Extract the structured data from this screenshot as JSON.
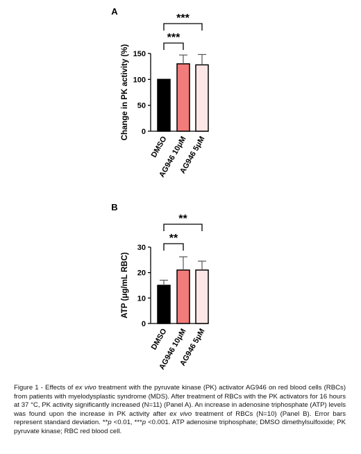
{
  "chart_data": [
    {
      "type": "bar",
      "panel_label": "A",
      "ylabel": "Change in PK activity  (%)",
      "categories": [
        "DMSO",
        "AG946 10μM",
        "AG946 5μM"
      ],
      "values": [
        100,
        130,
        128
      ],
      "error_bars": [
        0,
        17,
        20
      ],
      "ylim": [
        0,
        150
      ],
      "yticks": [
        "0",
        "50",
        "100",
        "150"
      ],
      "bar_colors": [
        "#000000",
        "#f27b7b",
        "#fde6e6"
      ],
      "significance": [
        {
          "from": 0,
          "to": 1,
          "label": "***"
        },
        {
          "from": 0,
          "to": 2,
          "label": "***"
        }
      ]
    },
    {
      "type": "bar",
      "panel_label": "B",
      "ylabel": "ATP (μg/mL RBC)",
      "categories": [
        "DMSO",
        "AG946 10μM",
        "AG946 5μM"
      ],
      "values": [
        15,
        21,
        21
      ],
      "error_bars": [
        2,
        5.2,
        3.5
      ],
      "ylim": [
        0,
        30
      ],
      "yticks": [
        "0",
        "10",
        "20",
        "30"
      ],
      "bar_colors": [
        "#000000",
        "#f27b7b",
        "#fde6e6"
      ],
      "significance": [
        {
          "from": 0,
          "to": 1,
          "label": "**"
        },
        {
          "from": 0,
          "to": 2,
          "label": "**"
        }
      ]
    }
  ],
  "caption": {
    "p1": "Figure 1 - Effects of ",
    "p2": "ex vivo",
    "p3": " treatment with the pyruvate kinase (PK) activator AG946 on red blood cells (RBCs) from patients with myelodysplastic syndrome (MDS). After treatment of RBCs with the PK activators for 16 hours at 37 °C, PK activity significantly increased (N=11) (Panel A). An increase in adenosine triphosphate (ATP) levels was found upon the increase in PK activity after ",
    "p4": "ex vivo",
    "p5": " treatment of RBCs (N=10) (Panel B). Error bars represent standard deviation. **",
    "p6": "p",
    "p7": " <0.01, ***",
    "p8": "p",
    "p9": " <0.001. ATP adenosine triphosphate; DMSO dimethylsulfoxide; PK pyruvate kinase; RBC red blood cell."
  }
}
